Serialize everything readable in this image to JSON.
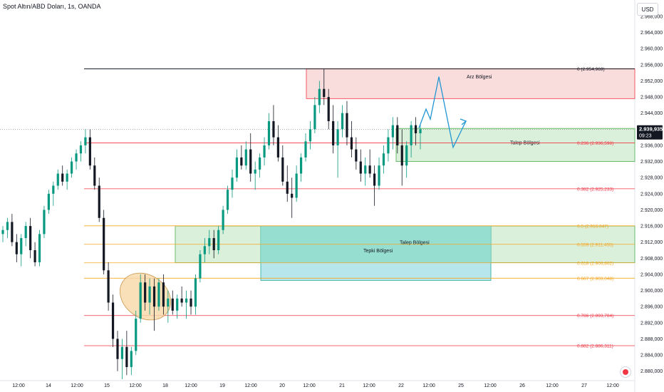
{
  "header": {
    "symbol_title": "Spot Altın/ABD Doları, 1s, OANDA",
    "currency": "USD"
  },
  "colors": {
    "up": "#089981",
    "down": "#131722",
    "wick": "#131722",
    "supply_fill": "#f8d7d7",
    "supply_line": "#f23645",
    "demand_fill": "#d4edd4",
    "demand_line": "#4caf50",
    "reaction_fill": "#b3e6ec",
    "reaction_fill2": "#8fdcc9",
    "fib_red": "#f23645",
    "fib_orange": "#f5a623",
    "projection": "#2196d3",
    "ellipse_fill": "#f8d8a8",
    "ellipse_stroke": "#c9974f",
    "price_badge": "#131722"
  },
  "chart_data": {
    "type": "candlestick",
    "title": "Spot Altın/ABD Doları, 1s, OANDA",
    "y_axis": {
      "range": [
        2878,
        2971
      ],
      "ticks": [
        "2.968,000",
        "2.964,000",
        "2.960,000",
        "2.956,000",
        "2.952,000",
        "2.948,000",
        "2.944,000",
        "2.940,000",
        "2.936,000",
        "2.932,000",
        "2.928,000",
        "2.924,000",
        "2.920,000",
        "2.916,000",
        "2.912,000",
        "2.908,000",
        "2.904,000",
        "2.900,000",
        "2.896,000",
        "2.892,000",
        "2.888,000",
        "2.884,000",
        "2.880,000"
      ],
      "tick_values": [
        2968,
        2964,
        2960,
        2956,
        2952,
        2948,
        2944,
        2940,
        2936,
        2932,
        2928,
        2924,
        2920,
        2916,
        2912,
        2908,
        2904,
        2900,
        2896,
        2892,
        2888,
        2884,
        2880
      ]
    },
    "x_axis": {
      "ticks": [
        "12:00",
        "14",
        "12:00",
        "15",
        "12:00",
        "18",
        "12:00",
        "19",
        "12:00",
        "20",
        "12:00",
        "21",
        "12:00",
        "22",
        "12:00",
        "25",
        "12:00",
        "26",
        "12:00",
        "27",
        "12:00"
      ]
    },
    "last_price": {
      "value": "2.939,935",
      "countdown": "09:23",
      "numeric": 2939.935
    },
    "fib_levels": [
      {
        "label": "0 (2.954,969)",
        "value": 2954.969,
        "color": "#131722"
      },
      {
        "label": "0.236 (2.936,598)",
        "value": 2936.598,
        "color": "#f23645"
      },
      {
        "label": "0.382 (2.925,233)",
        "value": 2925.233,
        "color": "#f23645"
      },
      {
        "label": "0.5 (2.916,047)",
        "value": 2916.047,
        "color": "#f5a623"
      },
      {
        "label": "0.559 (2.911,455)",
        "value": 2911.455,
        "color": "#f5a623"
      },
      {
        "label": "0.618 (2.906,862)",
        "value": 2906.862,
        "color": "#f5a623"
      },
      {
        "label": "0.667 (2.903,048)",
        "value": 2903.048,
        "color": "#f5a623"
      },
      {
        "label": "0.786 (2.893,784)",
        "value": 2893.784,
        "color": "#f23645"
      },
      {
        "label": "0.882 (2.886,311)",
        "value": 2886.311,
        "color": "#f23645"
      }
    ],
    "zones": [
      {
        "label": "Arz Bölgesi",
        "kind": "supply",
        "top": 2955,
        "bottom": 2947.6
      },
      {
        "label": "Talep Bölgesi",
        "kind": "demand",
        "top": 2940.2,
        "bottom": 2932.0
      },
      {
        "label": "Talep Bölgesi",
        "kind": "demand",
        "top": 2916.0,
        "bottom": 2906.9
      },
      {
        "label": "Tepki Bölgesi",
        "kind": "reaction",
        "top": 2916.0,
        "bottom": 2902.5
      }
    ],
    "projection_path": [
      2940.3,
      2945.0,
      2942.5,
      2953.0,
      2935.5,
      2942.0
    ],
    "candles": [
      [
        2914,
        2916,
        2912,
        2915
      ],
      [
        2915,
        2918,
        2913,
        2917
      ],
      [
        2917,
        2919,
        2911,
        2912
      ],
      [
        2912,
        2914,
        2907,
        2909
      ],
      [
        2909,
        2914,
        2906,
        2913
      ],
      [
        2913,
        2917,
        2911,
        2916
      ],
      [
        2916,
        2918,
        2908,
        2910
      ],
      [
        2910,
        2912,
        2906,
        2907
      ],
      [
        2907,
        2915,
        2906,
        2914
      ],
      [
        2914,
        2921,
        2913,
        2920
      ],
      [
        2920,
        2925,
        2919,
        2924
      ],
      [
        2924,
        2927,
        2921,
        2926
      ],
      [
        2926,
        2930,
        2925,
        2929
      ],
      [
        2929,
        2931,
        2926,
        2927
      ],
      [
        2927,
        2930,
        2925,
        2929
      ],
      [
        2929,
        2933,
        2928,
        2932
      ],
      [
        2932,
        2935,
        2930,
        2934
      ],
      [
        2934,
        2937,
        2932,
        2936
      ],
      [
        2936,
        2940,
        2934,
        2938
      ],
      [
        2938,
        2940,
        2930,
        2931
      ],
      [
        2931,
        2933,
        2925,
        2926
      ],
      [
        2926,
        2928,
        2917,
        2918
      ],
      [
        2918,
        2920,
        2904,
        2905
      ],
      [
        2905,
        2907,
        2895,
        2897
      ],
      [
        2897,
        2899,
        2886,
        2888
      ],
      [
        2888,
        2890,
        2880,
        2883
      ],
      [
        2883,
        2888,
        2878,
        2886
      ],
      [
        2886,
        2890,
        2879,
        2881
      ],
      [
        2881,
        2886,
        2879,
        2885
      ],
      [
        2885,
        2895,
        2884,
        2893
      ],
      [
        2893,
        2904,
        2892,
        2902
      ],
      [
        2902,
        2904,
        2895,
        2897
      ],
      [
        2897,
        2903,
        2894,
        2901
      ],
      [
        2901,
        2903,
        2890,
        2896
      ],
      [
        2896,
        2903,
        2895,
        2902
      ],
      [
        2902,
        2904,
        2894,
        2896
      ],
      [
        2896,
        2900,
        2892,
        2898
      ],
      [
        2898,
        2900,
        2894,
        2895
      ],
      [
        2895,
        2899,
        2893,
        2898
      ],
      [
        2898,
        2901,
        2896,
        2897
      ],
      [
        2897,
        2900,
        2893,
        2898
      ],
      [
        2898,
        2900,
        2894,
        2896
      ],
      [
        2896,
        2904,
        2894,
        2903
      ],
      [
        2903,
        2910,
        2902,
        2909
      ],
      [
        2909,
        2913,
        2907,
        2911
      ],
      [
        2911,
        2915,
        2909,
        2913
      ],
      [
        2913,
        2915,
        2908,
        2910
      ],
      [
        2910,
        2916,
        2909,
        2915
      ],
      [
        2915,
        2921,
        2914,
        2920
      ],
      [
        2920,
        2926,
        2919,
        2925
      ],
      [
        2925,
        2930,
        2923,
        2928
      ],
      [
        2928,
        2935,
        2927,
        2933
      ],
      [
        2933,
        2936,
        2930,
        2931
      ],
      [
        2931,
        2937,
        2930,
        2935
      ],
      [
        2935,
        2939,
        2927,
        2929
      ],
      [
        2929,
        2932,
        2925,
        2930
      ],
      [
        2930,
        2934,
        2928,
        2933
      ],
      [
        2933,
        2938,
        2931,
        2936
      ],
      [
        2936,
        2944,
        2935,
        2942
      ],
      [
        2942,
        2946,
        2936,
        2938
      ],
      [
        2938,
        2941,
        2932,
        2933
      ],
      [
        2933,
        2936,
        2926,
        2927
      ],
      [
        2927,
        2931,
        2922,
        2924
      ],
      [
        2924,
        2928,
        2918,
        2923
      ],
      [
        2923,
        2931,
        2922,
        2929
      ],
      [
        2929,
        2934,
        2927,
        2933
      ],
      [
        2933,
        2939,
        2932,
        2937
      ],
      [
        2937,
        2942,
        2935,
        2940
      ],
      [
        2940,
        2948,
        2939,
        2946
      ],
      [
        2946,
        2952,
        2944,
        2950
      ],
      [
        2950,
        2955,
        2946,
        2948
      ],
      [
        2948,
        2950,
        2940,
        2942
      ],
      [
        2942,
        2946,
        2934,
        2936
      ],
      [
        2936,
        2942,
        2928,
        2940
      ],
      [
        2940,
        2946,
        2938,
        2944
      ],
      [
        2944,
        2947,
        2936,
        2938
      ],
      [
        2938,
        2942,
        2933,
        2935
      ],
      [
        2935,
        2938,
        2930,
        2932
      ],
      [
        2932,
        2935,
        2927,
        2929
      ],
      [
        2929,
        2933,
        2926,
        2931
      ],
      [
        2931,
        2935,
        2928,
        2929
      ],
      [
        2929,
        2931,
        2921,
        2926
      ],
      [
        2926,
        2933,
        2925,
        2931
      ],
      [
        2931,
        2936,
        2929,
        2934
      ],
      [
        2934,
        2940,
        2932,
        2938
      ],
      [
        2938,
        2943,
        2935,
        2941
      ],
      [
        2941,
        2943,
        2934,
        2936
      ],
      [
        2936,
        2940,
        2926,
        2931
      ],
      [
        2931,
        2937,
        2928,
        2936
      ],
      [
        2936,
        2942,
        2933,
        2941
      ],
      [
        2941,
        2943,
        2936,
        2939
      ],
      [
        2939,
        2941,
        2935,
        2940
      ]
    ]
  }
}
